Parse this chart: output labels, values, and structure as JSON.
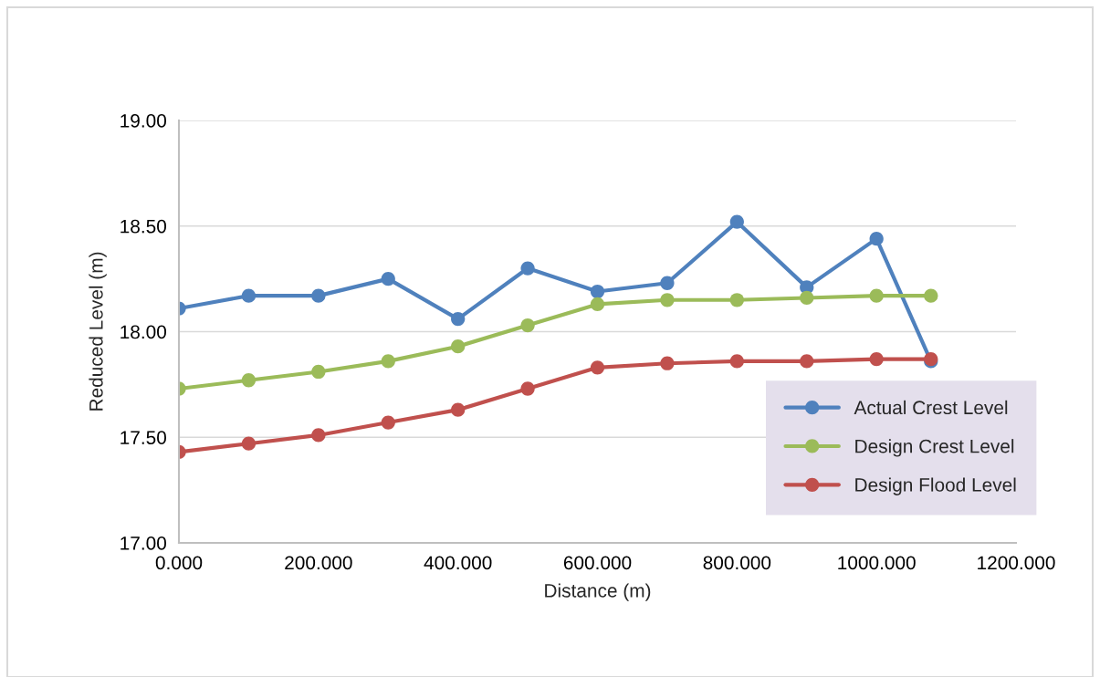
{
  "chart_data": {
    "type": "line",
    "xlabel": "Distance (m)",
    "ylabel": "Reduced Level (m)",
    "x": [
      0,
      100,
      200,
      300,
      400,
      500,
      600,
      700,
      800,
      900,
      1000,
      1078
    ],
    "series": [
      {
        "name": "Actual Crest Level",
        "color": "#4f81bd",
        "values": [
          18.11,
          18.17,
          18.17,
          18.25,
          18.06,
          18.3,
          18.19,
          18.23,
          18.52,
          18.21,
          18.44,
          17.86
        ]
      },
      {
        "name": "Design Crest Level",
        "color": "#9bbb59",
        "values": [
          17.73,
          17.77,
          17.81,
          17.86,
          17.93,
          18.03,
          18.13,
          18.15,
          18.15,
          18.16,
          18.17,
          18.17
        ]
      },
      {
        "name": "Design Flood Level",
        "color": "#c0504d",
        "values": [
          17.43,
          17.47,
          17.51,
          17.57,
          17.63,
          17.73,
          17.83,
          17.85,
          17.86,
          17.86,
          17.87,
          17.87
        ]
      }
    ],
    "xlim": [
      0,
      1200
    ],
    "ylim": [
      17,
      19
    ],
    "xticks": [
      {
        "value": 0,
        "label": "0.000"
      },
      {
        "value": 200,
        "label": "200.000"
      },
      {
        "value": 400,
        "label": "400.000"
      },
      {
        "value": 600,
        "label": "600.000"
      },
      {
        "value": 800,
        "label": "800.000"
      },
      {
        "value": 1000,
        "label": "1000.000"
      },
      {
        "value": 1200,
        "label": "1200.000"
      }
    ],
    "yticks": [
      {
        "value": 17,
        "label": "17.00"
      },
      {
        "value": 17.5,
        "label": "17.50"
      },
      {
        "value": 18,
        "label": "18.00"
      },
      {
        "value": 18.5,
        "label": "18.50"
      },
      {
        "value": 19,
        "label": "19.00"
      }
    ],
    "grid": "y",
    "legend": "bottom right",
    "marker": "circle",
    "line_style": "solid"
  }
}
